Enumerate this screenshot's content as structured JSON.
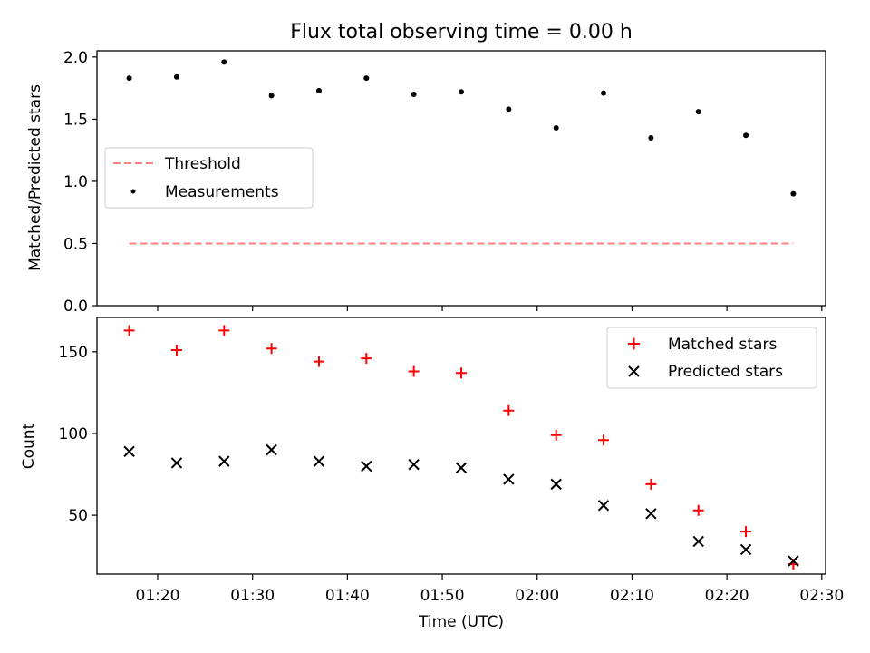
{
  "chart_data": [
    {
      "type": "scatter",
      "title": "Flux total observing time = 0.00 h",
      "xlabel": "",
      "ylabel": "Matched/Predicted stars",
      "ylim": [
        0.0,
        2.05
      ],
      "yticks": [
        "0.0",
        "0.5",
        "1.0",
        "1.5",
        "2.0"
      ],
      "x": [
        "01:17",
        "01:22",
        "01:27",
        "01:32",
        "01:37",
        "01:42",
        "01:47",
        "01:52",
        "01:57",
        "02:02",
        "02:07",
        "02:12",
        "02:17",
        "02:22",
        "02:27"
      ],
      "series": [
        {
          "name": "Threshold",
          "kind": "line",
          "style": "dashed",
          "color": "#ff8080",
          "x": [
            "01:17",
            "02:27"
          ],
          "values": [
            0.5,
            0.5
          ]
        },
        {
          "name": "Measurements",
          "kind": "scatter",
          "marker": "dot",
          "color": "#000000",
          "values": [
            1.83,
            1.84,
            1.96,
            1.69,
            1.73,
            1.83,
            1.7,
            1.72,
            1.58,
            1.43,
            1.71,
            1.35,
            1.56,
            1.37,
            0.9
          ]
        }
      ],
      "legend": {
        "placement": "center-left",
        "entries": [
          "Threshold",
          "Measurements"
        ]
      },
      "grid": false
    },
    {
      "type": "scatter",
      "title": "",
      "xlabel": "Time (UTC)",
      "ylabel": "Count",
      "xticks": [
        "01:20",
        "01:30",
        "01:40",
        "01:50",
        "02:00",
        "02:10",
        "02:20",
        "02:30"
      ],
      "yticks": [
        "50",
        "100",
        "150"
      ],
      "x": [
        "01:17",
        "01:22",
        "01:27",
        "01:32",
        "01:37",
        "01:42",
        "01:47",
        "01:52",
        "01:57",
        "02:02",
        "02:07",
        "02:12",
        "02:17",
        "02:22",
        "02:27"
      ],
      "series": [
        {
          "name": "Matched stars",
          "kind": "scatter",
          "marker": "plus",
          "color": "#ff0000",
          "values": [
            163,
            151,
            163,
            152,
            144,
            146,
            138,
            137,
            114,
            99,
            96,
            69,
            53,
            40,
            20
          ]
        },
        {
          "name": "Predicted stars",
          "kind": "scatter",
          "marker": "x",
          "color": "#000000",
          "values": [
            89,
            82,
            83,
            90,
            83,
            80,
            81,
            79,
            72,
            69,
            56,
            51,
            34,
            29,
            22
          ]
        }
      ],
      "legend": {
        "placement": "top-right",
        "entries": [
          "Matched stars",
          "Predicted stars"
        ]
      },
      "grid": false
    }
  ]
}
